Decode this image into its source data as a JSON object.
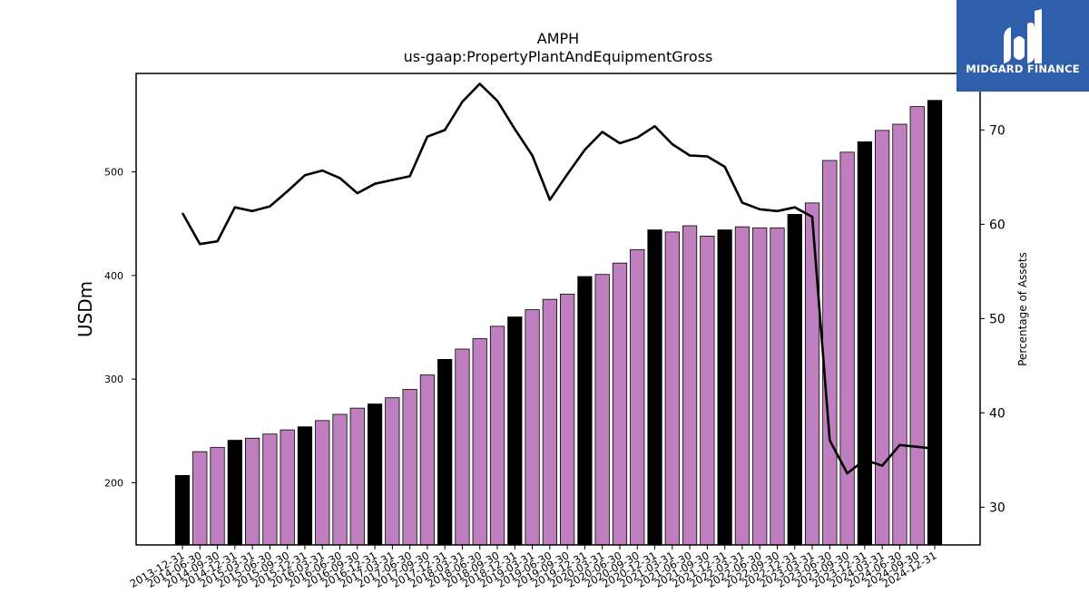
{
  "chart_data": {
    "type": "bar",
    "title": "AMPH",
    "subtitle": "us-gaap:PropertyPlantAndEquipmentGross",
    "ylabel": "USDm",
    "y2label": "Percentage of Assets",
    "ylim": [
      140,
      595
    ],
    "y2lim": [
      26,
      76
    ],
    "yticks": [
      200,
      300,
      400,
      500
    ],
    "y2ticks": [
      30,
      40,
      50,
      60,
      70
    ],
    "grid": false,
    "categories": [
      "2013-12-31",
      "2014-06-30",
      "2014-09-30",
      "2014-12-31",
      "2015-03-31",
      "2015-06-30",
      "2015-09-30",
      "2015-12-31",
      "2016-03-31",
      "2016-06-30",
      "2016-09-30",
      "2016-12-31",
      "2017-03-31",
      "2017-06-30",
      "2017-09-30",
      "2017-12-31",
      "2018-03-31",
      "2018-06-30",
      "2018-09-30",
      "2018-12-31",
      "2019-03-31",
      "2019-06-30",
      "2019-09-30",
      "2019-12-31",
      "2020-03-31",
      "2020-06-30",
      "2020-09-30",
      "2020-12-31",
      "2021-03-31",
      "2021-06-30",
      "2021-09-30",
      "2021-12-31",
      "2022-03-31",
      "2022-06-30",
      "2022-09-30",
      "2022-12-31",
      "2023-03-31",
      "2023-06-30",
      "2023-09-30",
      "2023-12-31",
      "2024-03-31",
      "2024-06-30",
      "2024-09-30",
      "2024-12-31"
    ],
    "series": [
      {
        "type": "bar",
        "axis": "left",
        "values": [
          207,
          230,
          234,
          241,
          243,
          247,
          251,
          254,
          260,
          266,
          272,
          276,
          282,
          290,
          304,
          319,
          329,
          339,
          351,
          360,
          367,
          377,
          382,
          399,
          401,
          412,
          425,
          444,
          442,
          448,
          438,
          444,
          447,
          446,
          446,
          459,
          470,
          511,
          519,
          529,
          540,
          546,
          563,
          569
        ]
      },
      {
        "type": "line",
        "axis": "right",
        "values": [
          61.2,
          57.9,
          58.2,
          61.8,
          61.4,
          61.9,
          63.5,
          65.2,
          65.7,
          64.9,
          63.3,
          64.3,
          64.7,
          65.1,
          69.3,
          70.0,
          73.0,
          74.9,
          73.1,
          70.1,
          67.3,
          62.6,
          65.3,
          67.9,
          69.8,
          68.6,
          69.2,
          70.4,
          68.5,
          67.3,
          67.2,
          66.1,
          62.3,
          61.6,
          61.4,
          61.8,
          60.8,
          37.1,
          33.6,
          35.0,
          34.4,
          36.6,
          36.4,
          36.2
        ]
      }
    ],
    "colors": {
      "bar_default": "#bf7fbf",
      "bar_year_end": "#000000",
      "line": "#000000"
    }
  },
  "branding": {
    "logo_text": "MIDGARD FINANCE",
    "logo_icon": "midgard-m-logo-icon",
    "background": "#2f5eab"
  }
}
